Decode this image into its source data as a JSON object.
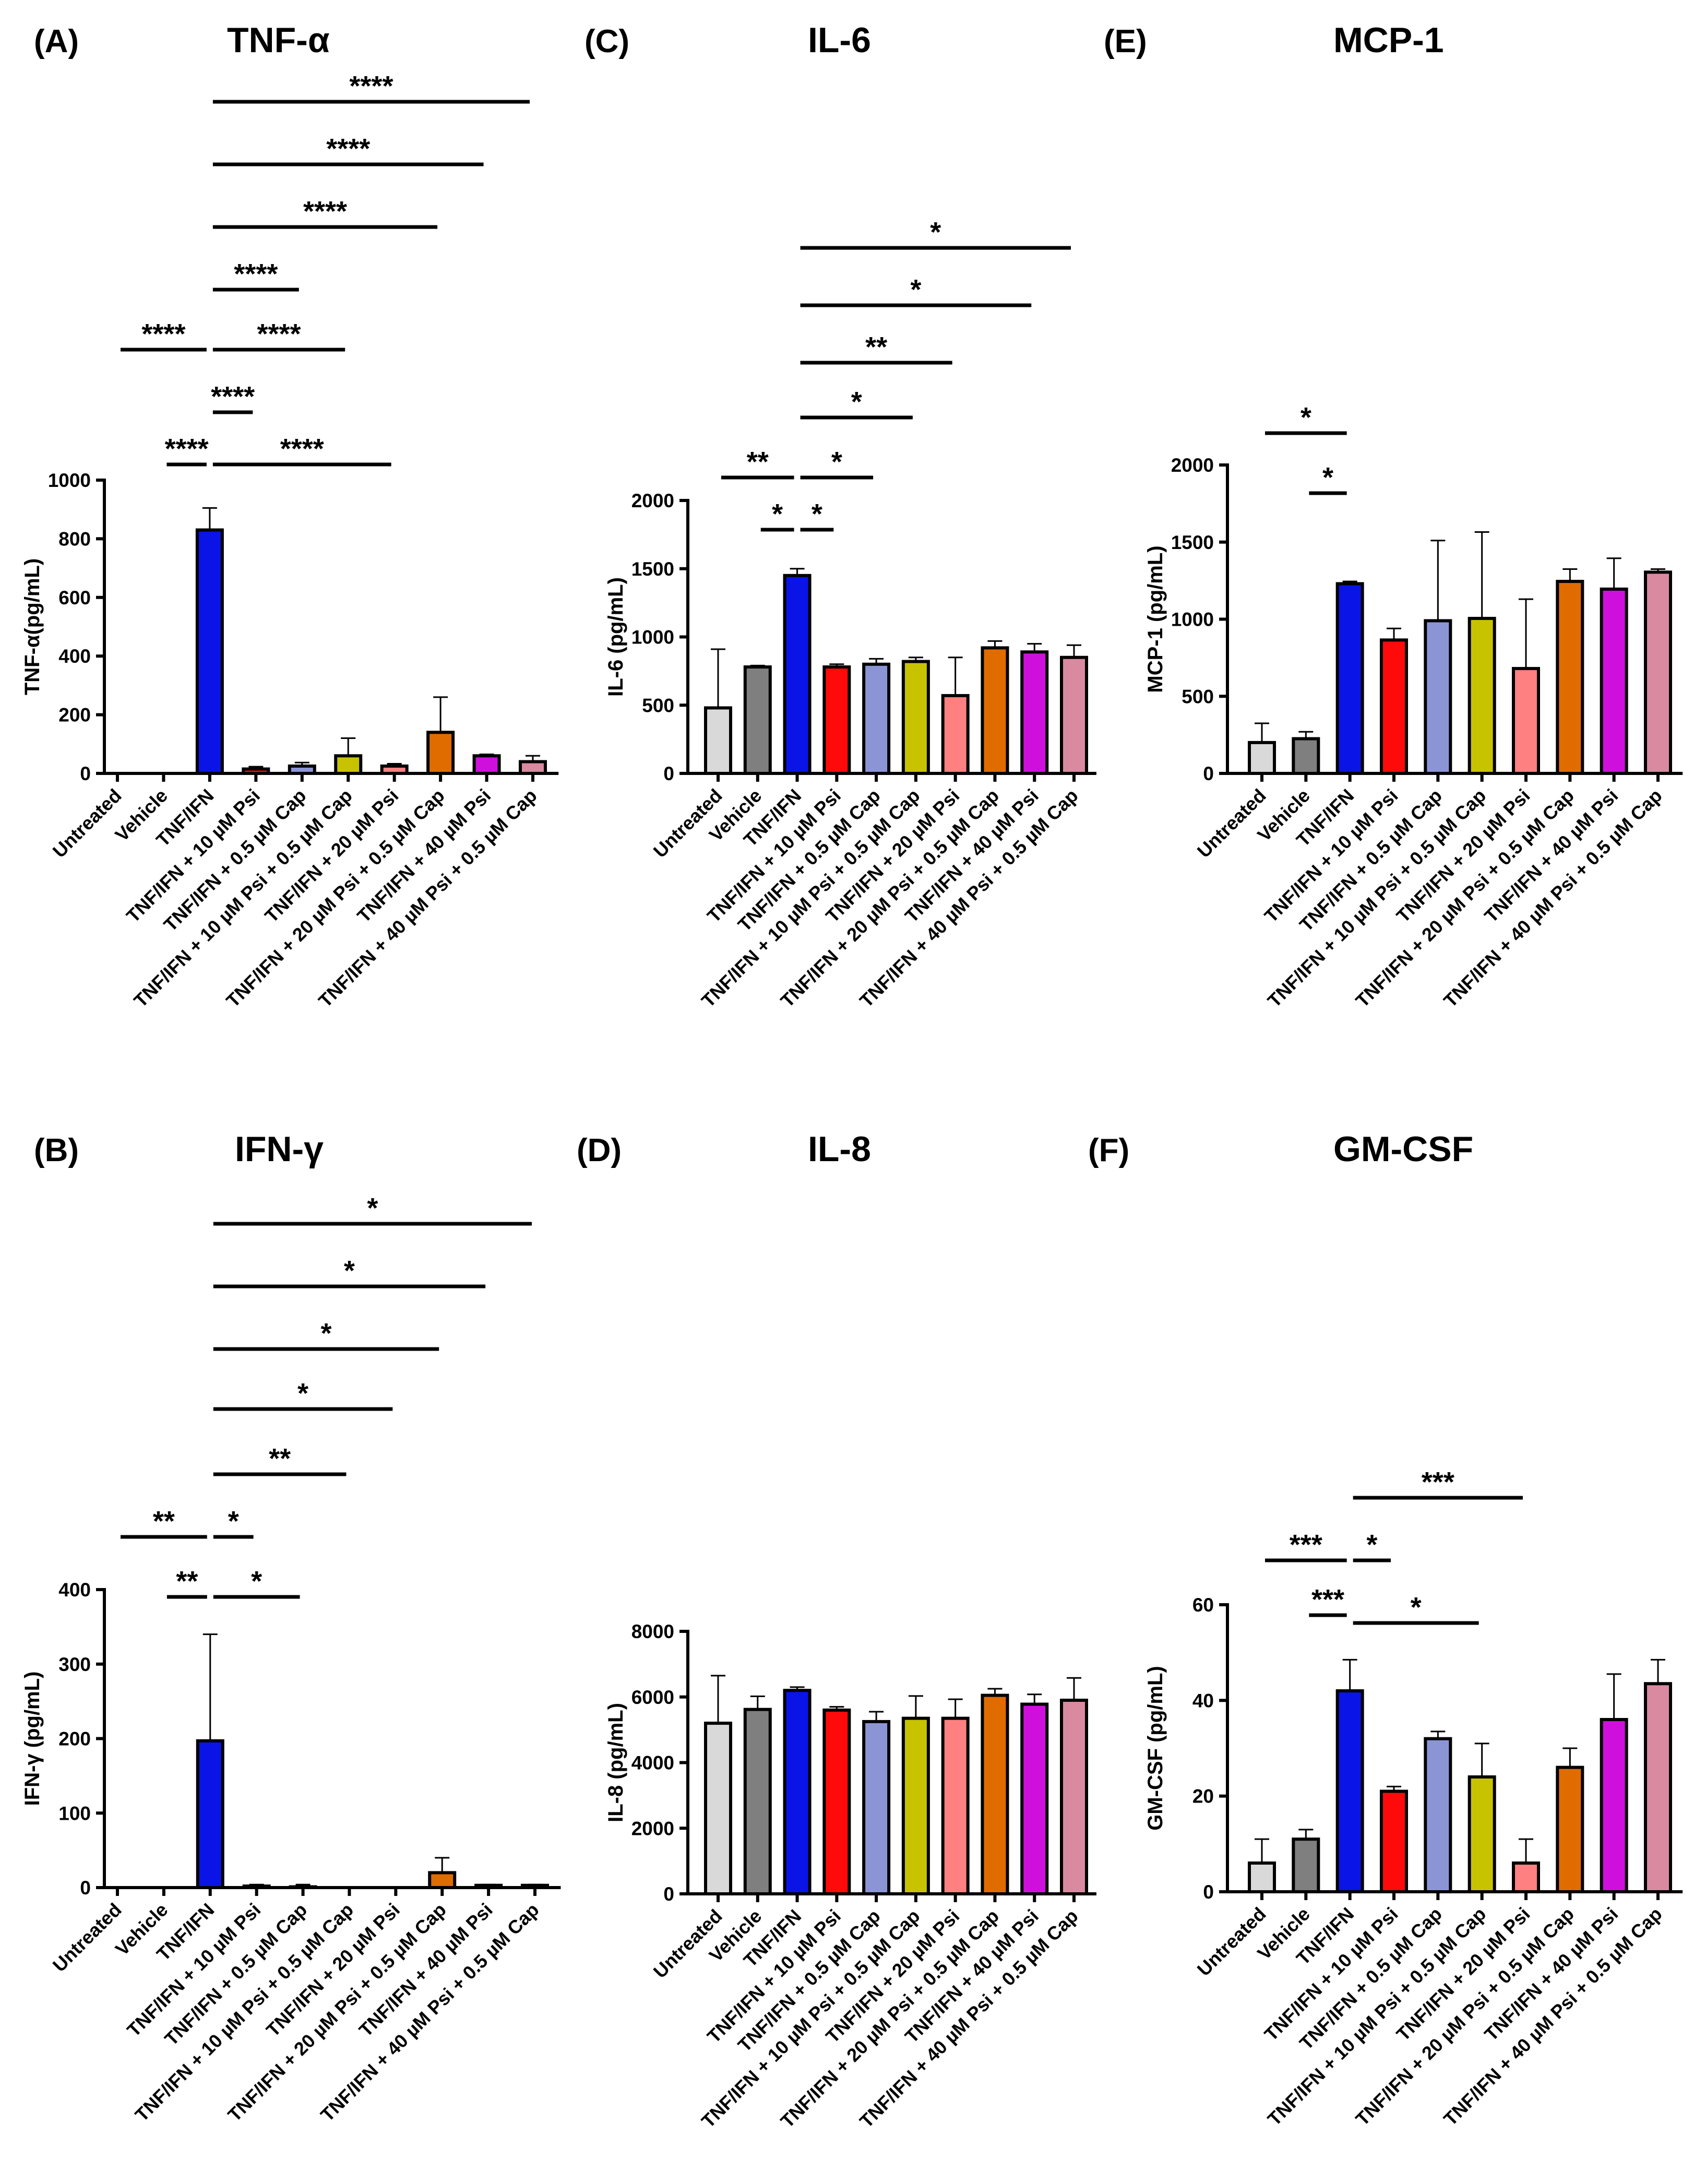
{
  "palette": [
    "#d9d9d9",
    "#7f7f7f",
    "#0a14e6",
    "#ff0a0a",
    "#8b95d6",
    "#c8c300",
    "#ff8080",
    "#e06c00",
    "#cf10dc",
    "#d98aa0"
  ],
  "chart_data": [
    {
      "id": "A",
      "type": "bar",
      "letter": "(A)",
      "title": "TNF-α",
      "ylabel": "TNF-α(pg/mL)",
      "ylim": [
        0,
        1000
      ],
      "yticks": [
        "0",
        "200",
        "400",
        "600",
        "800",
        "1000"
      ],
      "categories": [
        "Untreated",
        "Vehicle",
        "TNF/IFN",
        "TNF/IFN + 10 µM Psi",
        "TNF/IFN + 0.5 µM Cap",
        "TNF/IFN + 10 µM Psi + 0.5 µM Cap",
        "TNF/IFN + 20 µM Psi",
        "TNF/IFN + 20 µM Psi + 0.5 µM Cap",
        "TNF/IFN + 40 µM Psi",
        "TNF/IFN + 40 µM Psi + 0.5 µM Cap"
      ],
      "values": [
        0,
        0,
        830,
        15,
        25,
        60,
        25,
        140,
        60,
        40
      ],
      "errors": [
        0,
        0,
        75,
        8,
        12,
        60,
        8,
        120,
        5,
        20
      ],
      "significance": [
        {
          "from": 1,
          "to": 2,
          "label": "****"
        },
        {
          "from": 2,
          "to": 6,
          "label": "****"
        },
        {
          "from": 2,
          "to": 3,
          "label": "****"
        },
        {
          "from": 0,
          "to": 2,
          "label": "****"
        },
        {
          "from": 2,
          "to": 5,
          "label": "****"
        },
        {
          "from": 2,
          "to": 4,
          "label": "****"
        },
        {
          "from": 2,
          "to": 7,
          "label": "****"
        },
        {
          "from": 2,
          "to": 8,
          "label": "****"
        },
        {
          "from": 2,
          "to": 9,
          "label": "****"
        }
      ]
    },
    {
      "id": "B",
      "type": "bar",
      "letter": "(B)",
      "title": "IFN-γ",
      "ylabel": "IFN-γ (pg/mL)",
      "ylim": [
        0,
        400
      ],
      "yticks": [
        "0",
        "100",
        "200",
        "300",
        "400"
      ],
      "categories": [
        "Untreated",
        "Vehicle",
        "TNF/IFN",
        "TNF/IFN + 10 µM Psi",
        "TNF/IFN + 0.5 µM Cap",
        "TNF/IFN + 10 µM Psi + 0.5 µM Cap",
        "TNF/IFN + 20 µM Psi",
        "TNF/IFN + 20 µM Psi + 0.5 µM Cap",
        "TNF/IFN + 40 µM Psi",
        "TNF/IFN + 40 µM Psi + 0.5 µM Cap"
      ],
      "values": [
        0,
        0,
        197,
        2,
        1,
        0,
        0,
        20,
        3,
        3
      ],
      "errors": [
        0,
        0,
        143,
        2,
        3,
        1,
        1,
        20,
        1,
        1
      ],
      "significance": [
        {
          "from": 1,
          "to": 2,
          "label": "**"
        },
        {
          "from": 2,
          "to": 4,
          "label": "*"
        },
        {
          "from": 0,
          "to": 2,
          "label": "**"
        },
        {
          "from": 2,
          "to": 3,
          "label": "*"
        },
        {
          "from": 2,
          "to": 5,
          "label": "**"
        },
        {
          "from": 2,
          "to": 6,
          "label": "*"
        },
        {
          "from": 2,
          "to": 7,
          "label": "*"
        },
        {
          "from": 2,
          "to": 8,
          "label": "*"
        },
        {
          "from": 2,
          "to": 9,
          "label": "*"
        }
      ]
    },
    {
      "id": "C",
      "type": "bar",
      "letter": "(C)",
      "title": "IL-6",
      "ylabel": "IL-6 (pg/mL)",
      "ylim": [
        0,
        2000
      ],
      "yticks": [
        "0",
        "500",
        "1000",
        "1500",
        "2000"
      ],
      "categories": [
        "Untreated",
        "Vehicle",
        "TNF/IFN",
        "TNF/IFN + 10 µM Psi",
        "TNF/IFN + 0.5 µM Cap",
        "TNF/IFN + 10 µM Psi + 0.5 µM Cap",
        "TNF/IFN + 20 µM Psi",
        "TNF/IFN + 20 µM Psi + 0.5 µM Cap",
        "TNF/IFN + 40 µM Psi",
        "TNF/IFN + 40 µM Psi + 0.5 µM Cap"
      ],
      "values": [
        480,
        780,
        1450,
        780,
        800,
        820,
        570,
        920,
        890,
        850
      ],
      "errors": [
        430,
        10,
        50,
        20,
        40,
        30,
        280,
        50,
        60,
        90
      ],
      "significance": [
        {
          "from": 1,
          "to": 2,
          "label": "*"
        },
        {
          "from": 2,
          "to": 3,
          "label": "*"
        },
        {
          "from": 0,
          "to": 2,
          "label": "**"
        },
        {
          "from": 2,
          "to": 4,
          "label": "*"
        },
        {
          "from": 2,
          "to": 5,
          "label": "*"
        },
        {
          "from": 2,
          "to": 6,
          "label": "**"
        },
        {
          "from": 2,
          "to": 8,
          "label": "*"
        },
        {
          "from": 2,
          "to": 9,
          "label": "*"
        }
      ]
    },
    {
      "id": "D",
      "type": "bar",
      "letter": "(D)",
      "title": "IL-8",
      "ylabel": "IL-8 (pg/mL)",
      "ylim": [
        0,
        8000
      ],
      "yticks": [
        "0",
        "2000",
        "4000",
        "6000",
        "8000"
      ],
      "categories": [
        "Untreated",
        "Vehicle",
        "TNF/IFN",
        "TNF/IFN + 10 µM Psi",
        "TNF/IFN + 0.5 µM Cap",
        "TNF/IFN + 10 µM Psi + 0.5 µM Cap",
        "TNF/IFN + 20 µM Psi",
        "TNF/IFN + 20 µM Psi + 0.5 µM Cap",
        "TNF/IFN + 40 µM Psi",
        "TNF/IFN + 40 µM Psi + 0.5 µM Cap"
      ],
      "values": [
        5200,
        5620,
        6200,
        5600,
        5250,
        5350,
        5350,
        6050,
        5780,
        5900
      ],
      "errors": [
        1450,
        400,
        100,
        100,
        300,
        680,
        580,
        200,
        300,
        680
      ],
      "significance": []
    },
    {
      "id": "E",
      "type": "bar",
      "letter": "(E)",
      "title": "MCP-1",
      "ylabel": "MCP-1 (pg/mL)",
      "ylim": [
        0,
        2000
      ],
      "yticks": [
        "0",
        "500",
        "1000",
        "1500",
        "2000"
      ],
      "categories": [
        "Untreated",
        "Vehicle",
        "TNF/IFN",
        "TNF/IFN + 10 µM Psi",
        "TNF/IFN + 0.5 µM Cap",
        "TNF/IFN + 10 µM Psi + 0.5 µM Cap",
        "TNF/IFN + 20 µM Psi",
        "TNF/IFN + 20 µM Psi + 0.5 µM Cap",
        "TNF/IFN + 40 µM Psi",
        "TNF/IFN + 40 µM Psi + 0.5 µM Cap"
      ],
      "values": [
        200,
        225,
        1230,
        865,
        990,
        1005,
        680,
        1245,
        1195,
        1305
      ],
      "errors": [
        125,
        45,
        15,
        75,
        520,
        560,
        450,
        80,
        200,
        20
      ],
      "significance": [
        {
          "from": 1,
          "to": 2,
          "label": "*"
        },
        {
          "from": 0,
          "to": 2,
          "label": "*"
        }
      ]
    },
    {
      "id": "F",
      "type": "bar",
      "letter": "(F)",
      "title": "GM-CSF",
      "ylabel": "GM-CSF (pg/mL)",
      "ylim": [
        0,
        60
      ],
      "yticks": [
        "0",
        "20",
        "40",
        "60"
      ],
      "categories": [
        "Untreated",
        "Vehicle",
        "TNF/IFN",
        "TNF/IFN + 10 µM Psi",
        "TNF/IFN + 0.5 µM Cap",
        "TNF/IFN + 10 µM Psi + 0.5 µM Cap",
        "TNF/IFN + 20 µM Psi",
        "TNF/IFN + 20 µM Psi + 0.5 µM Cap",
        "TNF/IFN + 40 µM Psi",
        "TNF/IFN + 40 µM Psi + 0.5 µM Cap"
      ],
      "values": [
        6,
        11,
        42,
        21,
        32,
        24,
        6,
        26,
        36,
        43.5
      ],
      "errors": [
        5,
        2,
        6.5,
        1,
        1.5,
        7,
        5,
        4,
        9.5,
        5
      ],
      "significance": [
        {
          "from": 1,
          "to": 2,
          "label": "***"
        },
        {
          "from": 2,
          "to": 5,
          "label": "*"
        },
        {
          "from": 0,
          "to": 2,
          "label": "***"
        },
        {
          "from": 2,
          "to": 3,
          "label": "*"
        },
        {
          "from": 2,
          "to": 6,
          "label": "***"
        }
      ]
    }
  ]
}
